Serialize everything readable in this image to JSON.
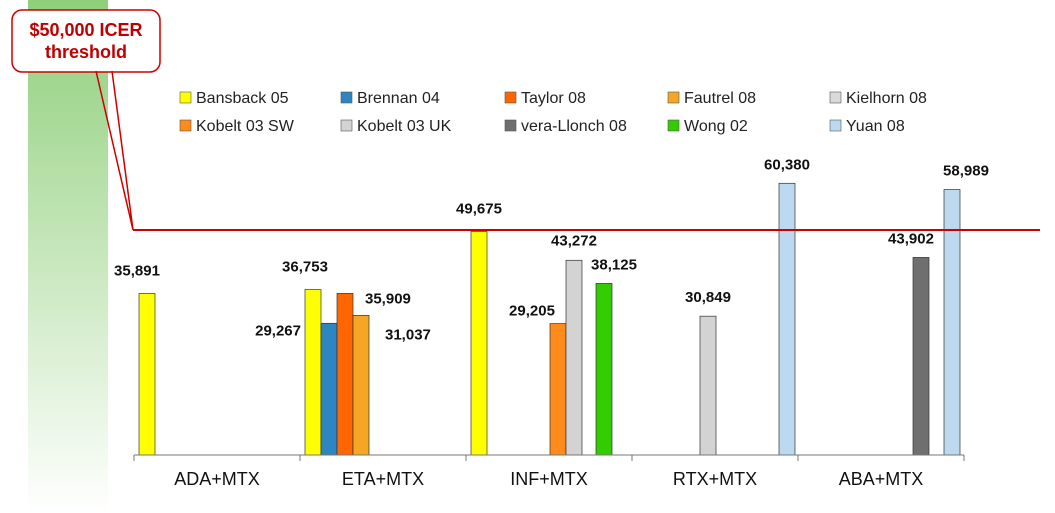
{
  "chart_data": {
    "type": "bar",
    "categories": [
      "ADA+MTX",
      "ETA+MTX",
      "INF+MTX",
      "RTX+MTX",
      "ABA+MTX"
    ],
    "ylim": [
      0,
      70000
    ],
    "series": [
      {
        "name": "Bansback 05",
        "color": "#ffff00",
        "values": [
          35891,
          36753,
          49675,
          null,
          null
        ]
      },
      {
        "name": "Brennan 04",
        "color": "#2e86c1",
        "values": [
          null,
          29267,
          null,
          null,
          null
        ]
      },
      {
        "name": "Taylor 08",
        "color": "#ff6600",
        "values": [
          null,
          35909,
          null,
          null,
          null
        ]
      },
      {
        "name": "Fautrel 08",
        "color": "#f5a623",
        "values": [
          null,
          31037,
          null,
          null,
          null
        ]
      },
      {
        "name": "Kielhorn 08",
        "color": "#d9d9d9",
        "values": [
          null,
          null,
          null,
          null,
          null
        ]
      },
      {
        "name": "Kobelt 03 SW",
        "color": "#ff8c1a",
        "values": [
          null,
          null,
          29205,
          null,
          null
        ]
      },
      {
        "name": "Kobelt 03 UK",
        "color": "#d3d3d3",
        "values": [
          null,
          null,
          43272,
          30849,
          null
        ]
      },
      {
        "name": "vera-Llonch 08",
        "color": "#6f6f6f",
        "values": [
          null,
          null,
          null,
          null,
          43902
        ]
      },
      {
        "name": "Wong 02",
        "color": "#33cc00",
        "values": [
          null,
          null,
          38125,
          null,
          null
        ]
      },
      {
        "name": "Yuan 08",
        "color": "#bcd9ef",
        "values": [
          null,
          null,
          null,
          60380,
          58989
        ]
      }
    ],
    "data_labels": [
      {
        "text": "35,891",
        "category": 0,
        "series": "Bansback 05"
      },
      {
        "text": "36,753",
        "category": 1,
        "series": "Bansback 05"
      },
      {
        "text": "29,267",
        "category": 1,
        "series": "Brennan 04"
      },
      {
        "text": "35,909",
        "category": 1,
        "series": "Taylor 08"
      },
      {
        "text": "31,037",
        "category": 1,
        "series": "Fautrel 08"
      },
      {
        "text": "49,675",
        "category": 2,
        "series": "Bansback 05"
      },
      {
        "text": "29,205",
        "category": 2,
        "series": "Kobelt 03 SW"
      },
      {
        "text": "43,272",
        "category": 2,
        "series": "Kobelt 03 UK"
      },
      {
        "text": "38,125",
        "category": 2,
        "series": "Wong 02"
      },
      {
        "text": "30,849",
        "category": 3,
        "series": "Kobelt 03 UK"
      },
      {
        "text": "60,380",
        "category": 3,
        "series": "Yuan 08"
      },
      {
        "text": "43,902",
        "category": 4,
        "series": "vera-Llonch 08"
      },
      {
        "text": "58,989",
        "category": 4,
        "series": "Yuan 08"
      }
    ],
    "threshold": {
      "value": 50000,
      "color": "#cc0000",
      "label_lines": [
        "$50,000 ICER",
        "threshold"
      ]
    },
    "legend_position": "top",
    "grid": false
  }
}
